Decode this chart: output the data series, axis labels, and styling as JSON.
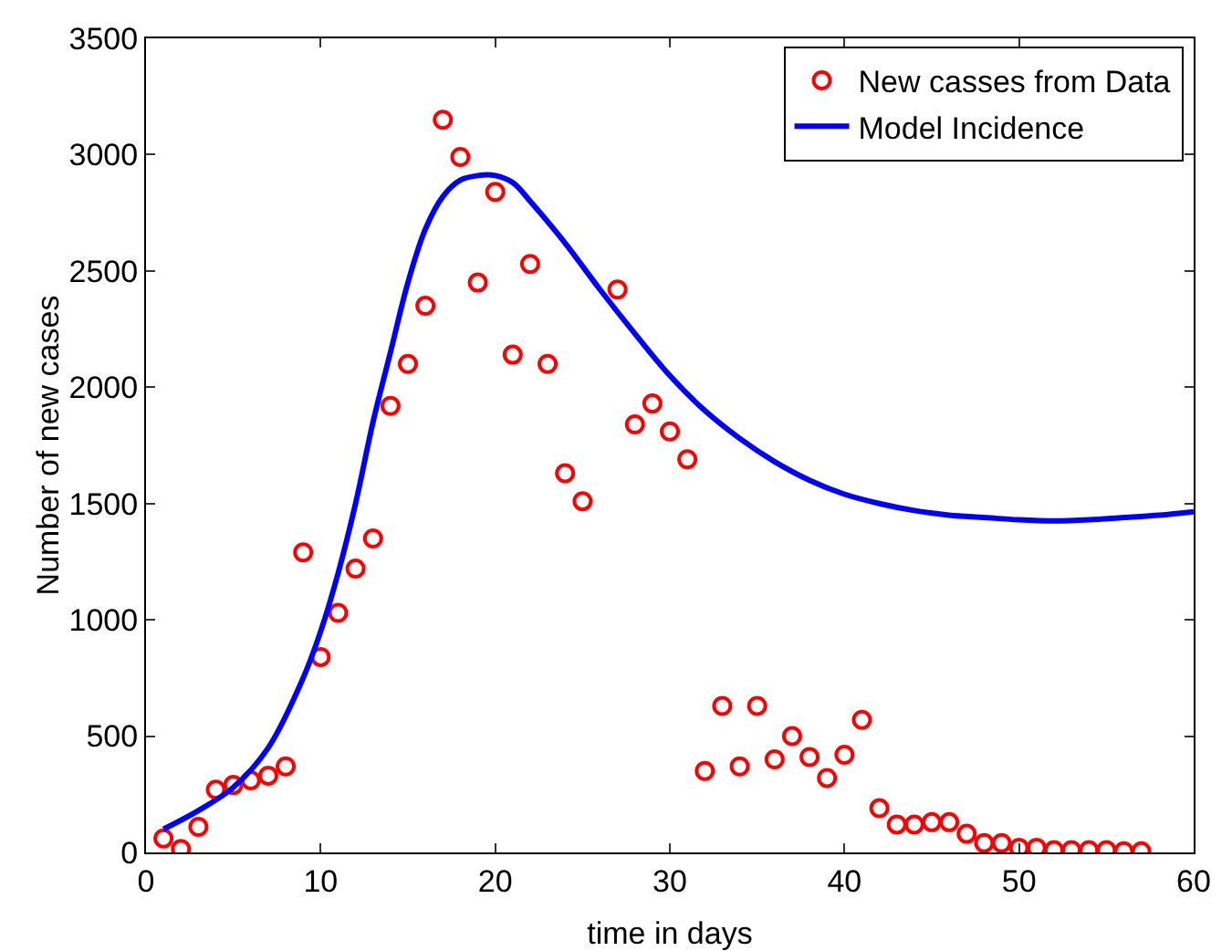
{
  "chart_data": {
    "type": "scatter",
    "xlabel": "time in days",
    "ylabel": "Number of new cases",
    "xlim": [
      0,
      60
    ],
    "ylim": [
      0,
      3500
    ],
    "xticks": [
      0,
      10,
      20,
      30,
      40,
      50,
      60
    ],
    "yticks": [
      0,
      500,
      1000,
      1500,
      2000,
      2500,
      3000,
      3500
    ],
    "grid": false,
    "legend": "top right",
    "series": [
      {
        "name": "New casses from Data",
        "marker": "circle",
        "color": "#ff0000",
        "x": [
          1,
          2,
          3,
          4,
          5,
          6,
          7,
          8,
          9,
          10,
          11,
          12,
          13,
          14,
          15,
          16,
          17,
          18,
          19,
          20,
          21,
          22,
          23,
          24,
          25,
          27,
          28,
          29,
          30,
          31,
          32,
          33,
          34,
          35,
          36,
          37,
          38,
          39,
          40,
          41,
          42,
          43,
          44,
          45,
          46,
          47,
          48,
          49,
          50,
          51,
          52,
          53,
          54,
          55,
          56,
          57
        ],
        "values": [
          60,
          15,
          110,
          270,
          290,
          310,
          330,
          370,
          1290,
          840,
          1030,
          1220,
          1350,
          1920,
          2100,
          2350,
          3150,
          2990,
          2450,
          2840,
          2140,
          2530,
          2100,
          1630,
          1510,
          2420,
          1840,
          1930,
          1810,
          1690,
          350,
          630,
          370,
          630,
          400,
          500,
          410,
          320,
          420,
          570,
          190,
          120,
          120,
          130,
          130,
          80,
          40,
          40,
          20,
          20,
          10,
          10,
          10,
          10,
          5,
          5
        ]
      },
      {
        "name": "Model Incidence",
        "type": "line",
        "marker": "none",
        "line_style": "solid",
        "color": "#0000ff",
        "x": [
          1,
          3,
          5,
          7,
          9,
          10,
          11,
          12,
          13,
          14,
          15,
          16,
          17,
          18,
          19,
          20,
          21,
          22,
          24,
          26,
          28,
          30,
          32,
          34,
          36,
          38,
          40,
          42,
          44,
          46,
          48,
          50,
          52,
          54,
          56,
          58,
          60
        ],
        "values": [
          100,
          180,
          280,
          450,
          750,
          950,
          1200,
          1500,
          1850,
          2150,
          2450,
          2680,
          2820,
          2890,
          2910,
          2910,
          2880,
          2800,
          2620,
          2420,
          2230,
          2050,
          1900,
          1780,
          1680,
          1600,
          1540,
          1500,
          1470,
          1450,
          1440,
          1430,
          1425,
          1430,
          1440,
          1450,
          1465
        ]
      }
    ]
  }
}
